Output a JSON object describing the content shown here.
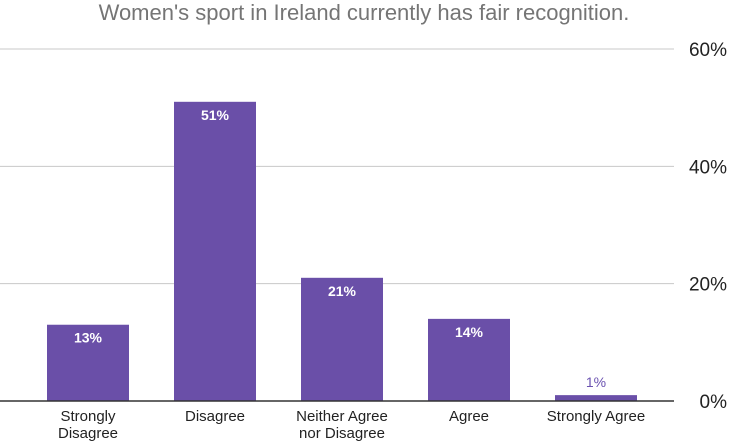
{
  "chart_data": {
    "type": "bar",
    "title": "Women's sport in Ireland currently has fair recognition.",
    "categories": [
      [
        "Strongly",
        "Disagree"
      ],
      [
        "Disagree"
      ],
      [
        "Neither Agree",
        "nor Disagree"
      ],
      [
        "Agree"
      ],
      [
        "Strongly Agree"
      ]
    ],
    "values": [
      13,
      51,
      21,
      14,
      1
    ],
    "value_labels": [
      "13%",
      "51%",
      "21%",
      "14%",
      "1%"
    ],
    "ylim": [
      0,
      60
    ],
    "yticks": [
      0,
      20,
      40,
      60
    ],
    "ytick_labels": [
      "0%",
      "20%",
      "40%",
      "60%"
    ],
    "y_axis_position": "right",
    "grid": true,
    "bar_color": "#6a4fa8",
    "outside_label_color": "#6a51b0"
  }
}
